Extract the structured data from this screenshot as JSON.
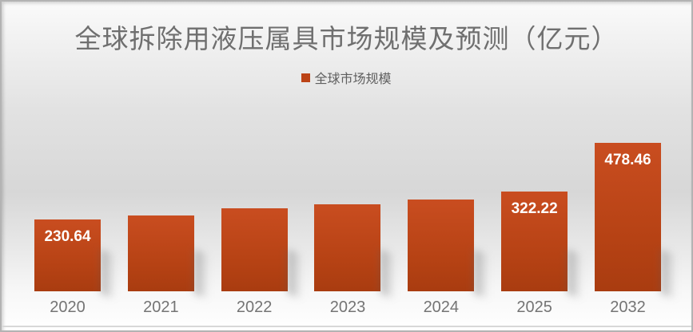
{
  "chart": {
    "title": "全球拆除用液压属具市场规模及预测（亿元）",
    "legend_label": "全球市场规模",
    "colors": {
      "bar_accent": "#bc4316",
      "bar_gradient_top": "#c94d20",
      "bar_gradient_bottom": "#a93c10",
      "title_text": "#6f6f6f",
      "axis_text": "#747474",
      "value_label_text": "#ffffff"
    }
  },
  "chart_data": {
    "type": "bar",
    "title": "全球拆除用液压属具市场规模及预测（亿元）",
    "legend": [
      "全球市场规模"
    ],
    "legend_position": "top-center",
    "categories": [
      "2020",
      "2021",
      "2022",
      "2023",
      "2024",
      "2025",
      "2032"
    ],
    "values": [
      230.64,
      245,
      268,
      280,
      297,
      322.22,
      478.46
    ],
    "value_labels": [
      "230.64",
      "",
      "",
      "",
      "",
      "322.22",
      "478.46"
    ],
    "xlabel": "",
    "ylabel": "",
    "ylim": [
      0,
      500
    ],
    "grid": false,
    "y_axis_shown": false
  }
}
